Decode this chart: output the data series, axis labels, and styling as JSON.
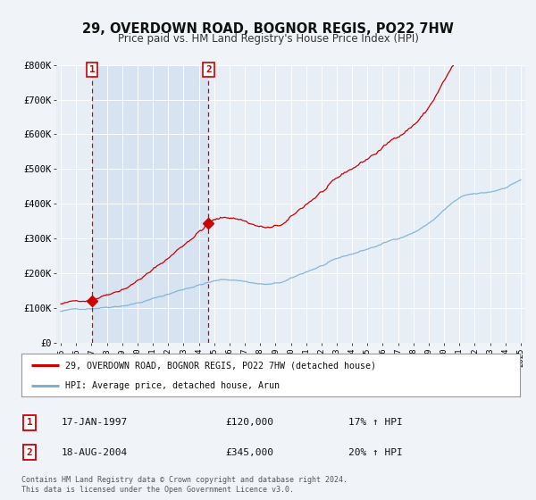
{
  "title": "29, OVERDOWN ROAD, BOGNOR REGIS, PO22 7HW",
  "subtitle": "Price paid vs. HM Land Registry's House Price Index (HPI)",
  "bg_color": "#f0f4f8",
  "plot_bg_color": "#e8eef5",
  "shade_color": "#d0dff0",
  "legend_entry1": "29, OVERDOWN ROAD, BOGNOR REGIS, PO22 7HW (detached house)",
  "legend_entry2": "HPI: Average price, detached house, Arun",
  "sale1_date": "17-JAN-1997",
  "sale1_price": "£120,000",
  "sale1_hpi": "17% ↑ HPI",
  "sale2_date": "18-AUG-2004",
  "sale2_price": "£345,000",
  "sale2_hpi": "20% ↑ HPI",
  "footer": "Contains HM Land Registry data © Crown copyright and database right 2024.\nThis data is licensed under the Open Government Licence v3.0.",
  "sale1_year": 1997.04,
  "sale1_value": 120000,
  "sale2_year": 2004.63,
  "sale2_value": 345000,
  "line_color_price": "#cc0000",
  "line_color_hpi": "#7bafd4",
  "vline_color": "#cc0000",
  "dot_color": "#cc0000",
  "ylim": [
    0,
    800000
  ],
  "xlim_min": 1994.7,
  "xlim_max": 2025.3
}
